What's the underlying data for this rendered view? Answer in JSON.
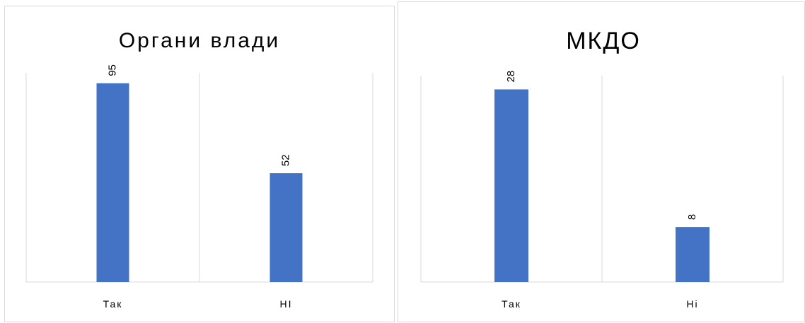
{
  "chart_data": [
    {
      "type": "bar",
      "title": "Органи влади",
      "categories": [
        "Так",
        "НІ"
      ],
      "values": [
        95,
        52
      ],
      "ylim": [
        0,
        100
      ],
      "grid": "vertical category separators",
      "data_labels": "rotated above bars",
      "color": "#4472c4"
    },
    {
      "type": "bar",
      "title": "МКДО",
      "categories": [
        "Так",
        "Ні"
      ],
      "values": [
        28,
        8
      ],
      "ylim": [
        0,
        30
      ],
      "grid": "vertical category separators",
      "data_labels": "rotated above bars",
      "color": "#4472c4"
    }
  ]
}
